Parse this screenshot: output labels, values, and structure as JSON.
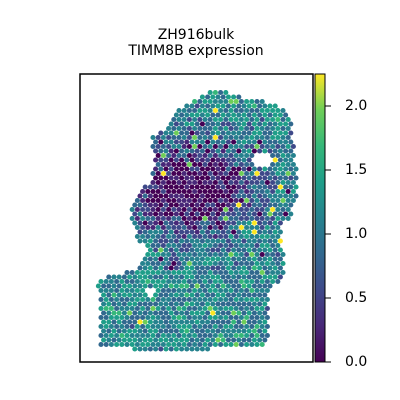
{
  "chart_data": {
    "type": "scatter",
    "title": "ZH916bulk",
    "subtitle": "TIMM8B expression",
    "xlabel": "",
    "ylabel": "",
    "grid": false,
    "colormap": "viridis",
    "colorbar": {
      "range": [
        0.0,
        2.25
      ],
      "ticks": [
        0.0,
        0.5,
        1.0,
        1.5,
        2.0
      ],
      "tick_labels": [
        "0.0",
        "0.5",
        "1.0",
        "1.5",
        "2.0"
      ]
    },
    "description_points": "Spatial hexagonal spot grid shaped like the tissue section; low-expression (dark purple) region concentrated in the upper-middle area, medium-to-high expression (teal/green) elsewhere."
  }
}
